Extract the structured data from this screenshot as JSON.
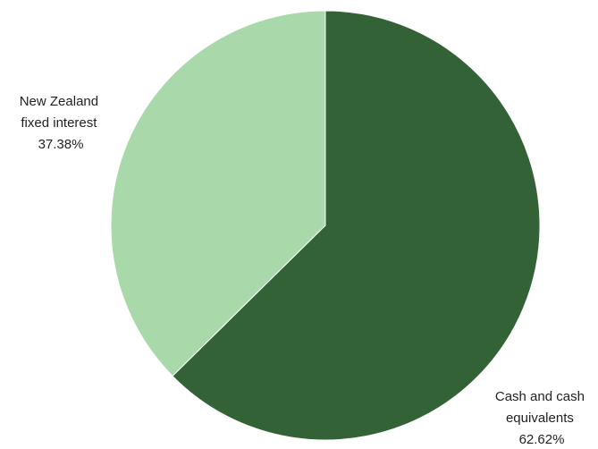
{
  "chart_data": {
    "type": "pie",
    "title": "",
    "start_angle_deg": 0,
    "direction": "clockwise",
    "legend": "none",
    "slices": [
      {
        "label_lines": [
          "Cash and cash",
          "equivalents"
        ],
        "value": 62.62,
        "value_text": "62.62%",
        "color": "#336237"
      },
      {
        "label_lines": [
          "New Zealand",
          "fixed interest"
        ],
        "value": 37.38,
        "value_text": "37.38%",
        "color": "#a9d8aa"
      }
    ]
  }
}
